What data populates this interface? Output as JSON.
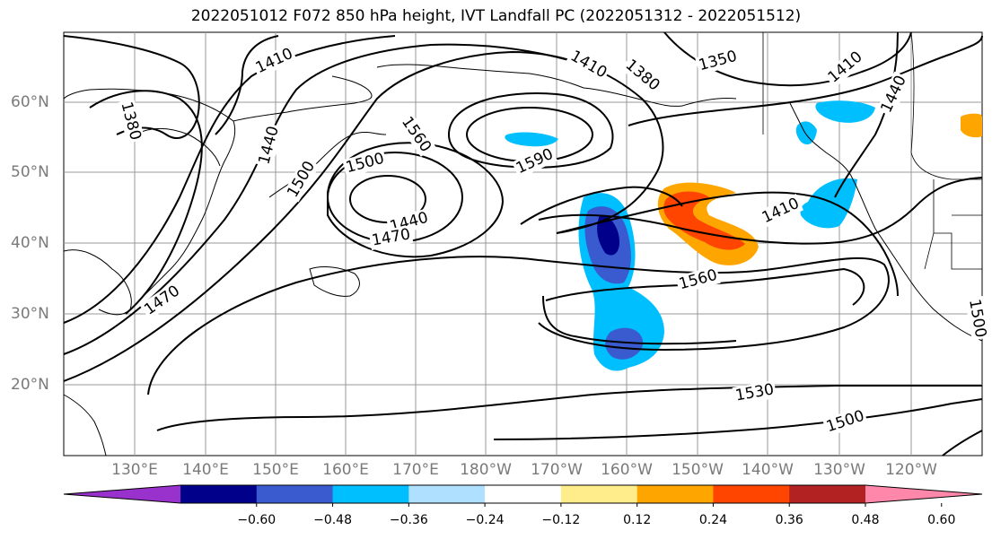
{
  "title": "2022051012 F072 850 hPa height, IVT Landfall PC (2022051312 - 2022051512)",
  "lat_labels": [
    "60°N",
    "50°N",
    "40°N",
    "30°N",
    "20°N"
  ],
  "lon_labels": [
    "130°E",
    "140°E",
    "150°E",
    "160°E",
    "170°E",
    "180°W",
    "170°W",
    "160°W",
    "150°W",
    "140°W",
    "130°W",
    "120°W"
  ],
  "contour_labels": [
    "1410",
    "1380",
    "1440",
    "1500",
    "1470",
    "1560",
    "1590",
    "1500",
    "1440",
    "1470",
    "1380",
    "1350",
    "1410",
    "1440",
    "1410",
    "1560",
    "1530",
    "1500",
    "1410",
    "1500"
  ],
  "colorbar": {
    "ticks": [
      "−0.60",
      "−0.48",
      "−0.36",
      "−0.24",
      "−0.12",
      "0.12",
      "0.24",
      "0.36",
      "0.48",
      "0.60"
    ],
    "colors": [
      "#9932cc",
      "#00008b",
      "#3a5bd0",
      "#00bfff",
      "#b0e0ff",
      "#ffffff",
      "#ffec8b",
      "#ffa500",
      "#ff4500",
      "#b22222",
      "#ff88aa"
    ]
  }
}
